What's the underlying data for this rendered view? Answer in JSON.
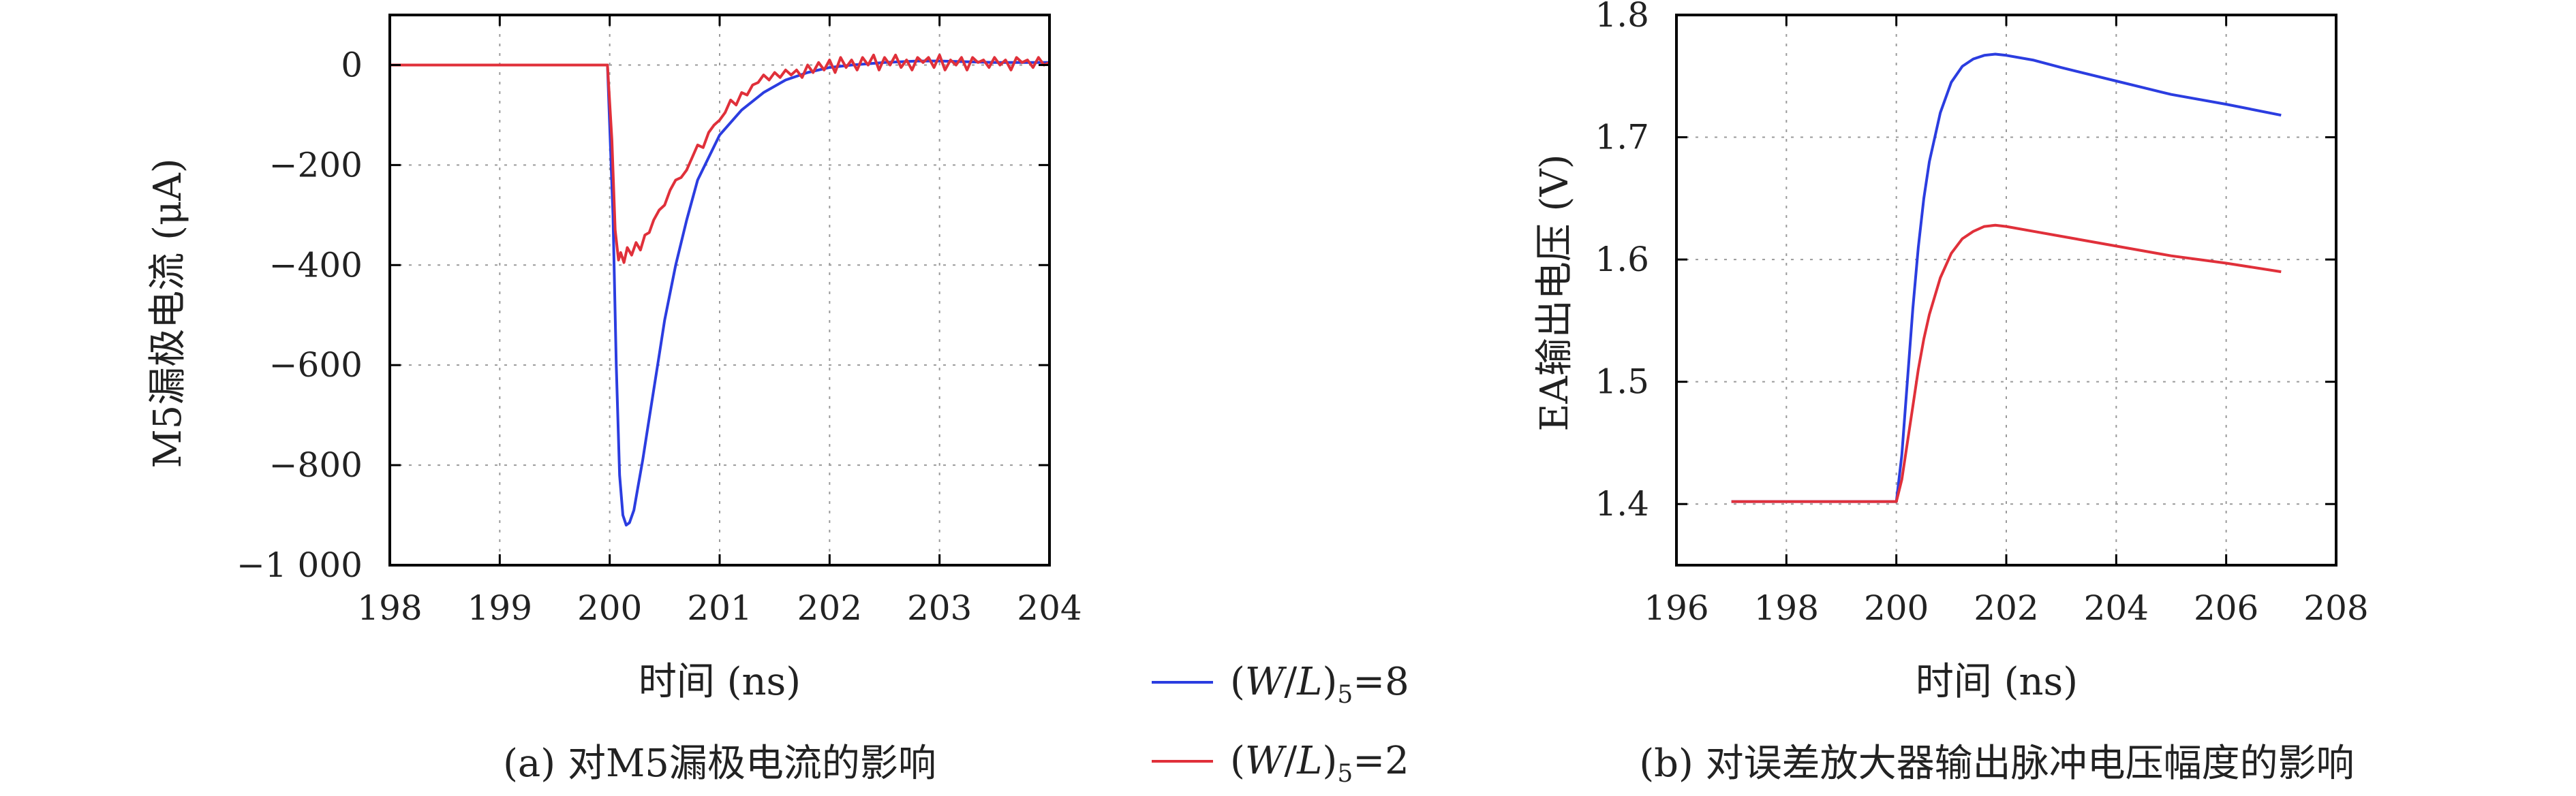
{
  "chart_data": [
    {
      "type": "line",
      "caption": "(a) 对M5漏极电流的影响",
      "xlabel": "时间 (ns)",
      "ylabel": "M5漏极电流 (μA)",
      "xlim": [
        198,
        204
      ],
      "ylim": [
        -1000,
        100
      ],
      "xticks": [
        198,
        199,
        200,
        201,
        202,
        203,
        204
      ],
      "yticks": [
        0,
        -200,
        -400,
        -600,
        -800,
        -1000
      ],
      "xtick_labels": [
        "198",
        "199",
        "200",
        "201",
        "202",
        "203",
        "204"
      ],
      "ytick_labels": [
        "0",
        "−200",
        "−400",
        "−600",
        "−800",
        "−1 000"
      ],
      "grid": true,
      "series": [
        {
          "name": "(W/L)5=8",
          "color": "#2b3de0",
          "x": [
            198,
            199,
            199.98,
            200.03,
            200.06,
            200.09,
            200.12,
            200.15,
            200.18,
            200.22,
            200.26,
            200.3,
            200.35,
            200.4,
            200.45,
            200.5,
            200.6,
            200.7,
            200.8,
            201.0,
            201.2,
            201.4,
            201.6,
            201.8,
            202.0,
            202.2,
            202.5,
            202.8,
            203.0,
            203.5,
            204.0
          ],
          "y": [
            0,
            0,
            0,
            -300,
            -600,
            -820,
            -900,
            -920,
            -915,
            -890,
            -840,
            -790,
            -720,
            -650,
            -580,
            -510,
            -400,
            -310,
            -230,
            -140,
            -90,
            -55,
            -30,
            -15,
            -5,
            0,
            5,
            8,
            8,
            5,
            5
          ]
        },
        {
          "name": "(W/L)5=2",
          "color": "#e0303a",
          "x": [
            198,
            199,
            199.98,
            200.02,
            200.05,
            200.08,
            200.1,
            200.13,
            200.16,
            200.2,
            200.24,
            200.28,
            200.32,
            200.36,
            200.4,
            200.45,
            200.5,
            200.55,
            200.6,
            200.65,
            200.7,
            200.75,
            200.8,
            200.85,
            200.9,
            200.95,
            201.0,
            201.05,
            201.1,
            201.15,
            201.2,
            201.25,
            201.3,
            201.35,
            201.4,
            201.45,
            201.5,
            201.55,
            201.6,
            201.65,
            201.7,
            201.75,
            201.8,
            201.85,
            201.9,
            201.95,
            202.0,
            202.05,
            202.1,
            202.15,
            202.2,
            202.25,
            202.3,
            202.35,
            202.4,
            202.45,
            202.5,
            202.55,
            202.6,
            202.65,
            202.7,
            202.75,
            202.8,
            202.85,
            202.9,
            202.95,
            203.0,
            203.05,
            203.1,
            203.15,
            203.2,
            203.25,
            203.3,
            203.35,
            203.4,
            203.45,
            203.5,
            203.55,
            203.6,
            203.65,
            203.7,
            203.75,
            203.8,
            203.85,
            203.9,
            203.95,
            204.0
          ],
          "y": [
            0,
            0,
            0,
            -150,
            -330,
            -390,
            -375,
            -395,
            -365,
            -380,
            -355,
            -370,
            -340,
            -335,
            -310,
            -290,
            -280,
            -250,
            -230,
            -225,
            -210,
            -185,
            -160,
            -165,
            -135,
            -120,
            -110,
            -95,
            -70,
            -80,
            -55,
            -60,
            -40,
            -35,
            -20,
            -30,
            -15,
            -25,
            -10,
            -20,
            -10,
            -25,
            0,
            -15,
            5,
            -10,
            10,
            -15,
            15,
            -5,
            10,
            -10,
            15,
            0,
            20,
            -10,
            15,
            0,
            20,
            -5,
            10,
            -10,
            15,
            5,
            15,
            -5,
            20,
            -10,
            10,
            0,
            15,
            -10,
            15,
            5,
            10,
            -5,
            15,
            0,
            10,
            -10,
            15,
            5,
            10,
            -5,
            15,
            0,
            5
          ]
        }
      ]
    },
    {
      "type": "line",
      "caption": "(b) 对误差放大器输出脉冲电压幅度的影响",
      "xlabel": "时间 (ns)",
      "ylabel": "EA输出电压 (V)",
      "xlim": [
        196,
        208
      ],
      "ylim": [
        1.35,
        1.8
      ],
      "xticks": [
        196,
        198,
        200,
        202,
        204,
        206,
        208
      ],
      "yticks": [
        1.4,
        1.5,
        1.6,
        1.7,
        1.8
      ],
      "xtick_labels": [
        "196",
        "198",
        "200",
        "202",
        "204",
        "206",
        "208"
      ],
      "ytick_labels": [
        "1.4",
        "1.5",
        "1.6",
        "1.7",
        "1.8"
      ],
      "grid": true,
      "series": [
        {
          "name": "(W/L)5=8",
          "color": "#2b3de0",
          "x": [
            197,
            198,
            199,
            200,
            200.1,
            200.2,
            200.3,
            200.4,
            200.5,
            200.6,
            200.8,
            201.0,
            201.2,
            201.4,
            201.6,
            201.8,
            202.0,
            202.5,
            203,
            204,
            205,
            206,
            207
          ],
          "y": [
            1.402,
            1.402,
            1.402,
            1.402,
            1.44,
            1.5,
            1.56,
            1.61,
            1.65,
            1.68,
            1.72,
            1.745,
            1.758,
            1.764,
            1.767,
            1.768,
            1.767,
            1.763,
            1.757,
            1.746,
            1.735,
            1.727,
            1.718
          ]
        },
        {
          "name": "(W/L)5=2",
          "color": "#e0303a",
          "x": [
            197,
            198,
            199,
            200,
            200.1,
            200.2,
            200.3,
            200.4,
            200.5,
            200.6,
            200.8,
            201.0,
            201.2,
            201.4,
            201.6,
            201.8,
            202.0,
            202.5,
            203,
            204,
            205,
            206,
            207
          ],
          "y": [
            1.402,
            1.402,
            1.402,
            1.402,
            1.42,
            1.45,
            1.48,
            1.51,
            1.535,
            1.555,
            1.585,
            1.605,
            1.617,
            1.623,
            1.627,
            1.628,
            1.627,
            1.623,
            1.619,
            1.611,
            1.603,
            1.597,
            1.59
          ]
        }
      ]
    }
  ],
  "legend": {
    "items": [
      {
        "prefix": "(",
        "w": "W",
        "slash": "/",
        "l": "L",
        "close": ")",
        "sub": "5",
        "eq": "=8",
        "color": "#2b3de0"
      },
      {
        "prefix": "(",
        "w": "W",
        "slash": "/",
        "l": "L",
        "close": ")",
        "sub": "5",
        "eq": "=2",
        "color": "#e0303a"
      }
    ]
  }
}
